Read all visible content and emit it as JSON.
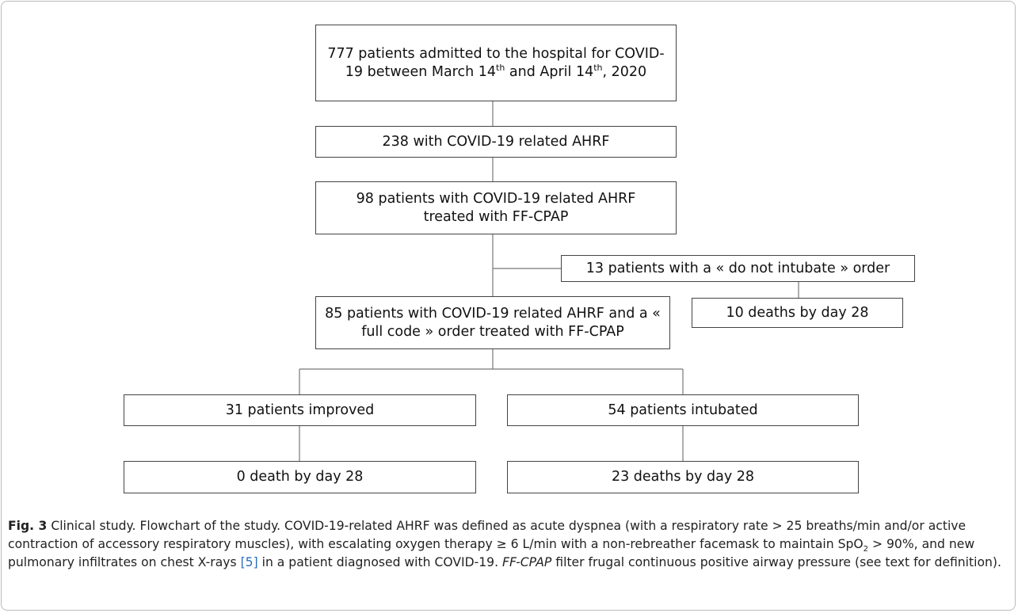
{
  "nodes": [
    {
      "label": [
        "777 patients admitted to the hospital for COVID-19 between March 14",
        "th",
        " and April 14",
        "th",
        ", 2020"
      ]
    },
    {
      "label": "238 with COVID-19 related AHRF"
    },
    {
      "label": "98 patients with COVID-19 related AHRF treated with FF-CPAP"
    },
    {
      "label": "13 patients with a « do not intubate » order"
    },
    {
      "label": "10 deaths by day 28"
    },
    {
      "label": "85 patients with COVID-19 related AHRF and a « full code » order treated with FF-CPAP"
    },
    {
      "label": "31 patients improved"
    },
    {
      "label": "54 patients intubated"
    },
    {
      "label": "0 death by day 28"
    },
    {
      "label": "23 deaths by day 28"
    }
  ],
  "caption": [
    "Fig. 3",
    " Clinical study. Flowchart of the study. COVID-19-related AHRF was defined as acute dyspnea (with a respiratory rate > 25 breaths/min and/or active contraction of accessory respiratory muscles), with escalating oxygen therapy ≥ 6 L/min with a non-rebreather facemask to maintain SpO",
    "2",
    " > 90%, and new pulmonary infiltrates on chest X-rays ",
    "[5]",
    " in a patient diagnosed with COVID-19. ",
    "FF-CPAP",
    " filter frugal continuous positive airway pressure (see text for definition)."
  ]
}
